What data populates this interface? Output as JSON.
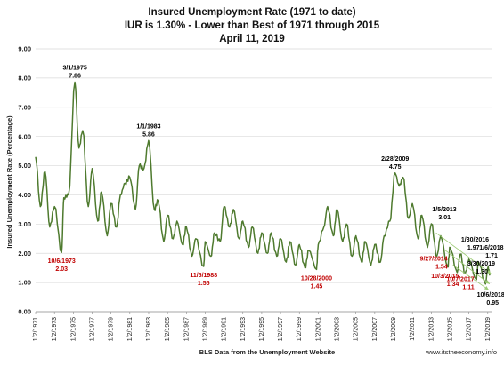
{
  "chart_data": {
    "type": "line",
    "title_lines": [
      "Insured Unemployment Rate (1971 to date)",
      "IUR is 1.30% - Lower than Best of 1971 through 2015",
      "April 11, 2019"
    ],
    "ylabel": "Insured Unemployment Rate (Percentage)",
    "xlabel": "BLS Data from the Unemployment Website",
    "source": "www.itstheeconomy.info",
    "ylim": [
      0,
      9
    ],
    "yticks": [
      "0.00",
      "1.00",
      "2.00",
      "3.00",
      "4.00",
      "5.00",
      "6.00",
      "7.00",
      "8.00",
      "9.00"
    ],
    "xlim": [
      1971.0,
      2019.4
    ],
    "xticks": [
      "1/2/1971",
      "1/2/1973",
      "1/2/1975",
      "1/2/1977",
      "1/2/1979",
      "1/2/1981",
      "1/2/1983",
      "1/2/1985",
      "1/2/1987",
      "1/2/1989",
      "1/2/1991",
      "1/2/1993",
      "1/2/1995",
      "1/2/1997",
      "1/2/1999",
      "1/2/2001",
      "1/2/2003",
      "1/2/2005",
      "1/2/2007",
      "1/2/2009",
      "1/2/2011",
      "1/2/2013",
      "1/2/2015",
      "1/2/2017",
      "1/2/2019"
    ],
    "grid": "horizontal",
    "line_color": "#4e7a2e",
    "series_trend": [
      [
        1971.0,
        5.3
      ],
      [
        1971.5,
        3.6
      ],
      [
        1972.0,
        4.8
      ],
      [
        1972.5,
        2.9
      ],
      [
        1973.0,
        3.6
      ],
      [
        1973.76,
        2.03
      ],
      [
        1974.0,
        3.9
      ],
      [
        1974.5,
        4.0
      ],
      [
        1975.17,
        7.86
      ],
      [
        1975.6,
        5.6
      ],
      [
        1976.0,
        6.2
      ],
      [
        1976.6,
        3.6
      ],
      [
        1977.0,
        4.9
      ],
      [
        1977.6,
        3.1
      ],
      [
        1978.0,
        4.1
      ],
      [
        1978.6,
        2.6
      ],
      [
        1979.0,
        3.7
      ],
      [
        1979.6,
        2.9
      ],
      [
        1980.0,
        4.0
      ],
      [
        1980.5,
        4.4
      ],
      [
        1981.0,
        4.6
      ],
      [
        1981.6,
        3.5
      ],
      [
        1982.0,
        5.0
      ],
      [
        1982.5,
        4.9
      ],
      [
        1983.0,
        5.86
      ],
      [
        1983.6,
        3.5
      ],
      [
        1984.0,
        3.8
      ],
      [
        1984.6,
        2.4
      ],
      [
        1985.0,
        3.3
      ],
      [
        1985.6,
        2.5
      ],
      [
        1986.0,
        3.1
      ],
      [
        1986.6,
        2.3
      ],
      [
        1987.0,
        2.9
      ],
      [
        1987.6,
        1.9
      ],
      [
        1988.0,
        2.5
      ],
      [
        1988.84,
        1.55
      ],
      [
        1989.0,
        2.4
      ],
      [
        1989.6,
        1.9
      ],
      [
        1990.0,
        2.7
      ],
      [
        1990.6,
        2.4
      ],
      [
        1991.0,
        3.6
      ],
      [
        1991.6,
        2.9
      ],
      [
        1992.0,
        3.5
      ],
      [
        1992.6,
        2.5
      ],
      [
        1993.0,
        3.1
      ],
      [
        1993.6,
        2.2
      ],
      [
        1994.0,
        2.9
      ],
      [
        1994.6,
        2.0
      ],
      [
        1995.0,
        2.7
      ],
      [
        1995.6,
        2.0
      ],
      [
        1996.0,
        2.7
      ],
      [
        1996.6,
        1.9
      ],
      [
        1997.0,
        2.5
      ],
      [
        1997.6,
        1.7
      ],
      [
        1998.0,
        2.4
      ],
      [
        1998.6,
        1.6
      ],
      [
        1999.0,
        2.3
      ],
      [
        1999.6,
        1.5
      ],
      [
        2000.0,
        2.1
      ],
      [
        2000.82,
        1.45
      ],
      [
        2001.0,
        2.3
      ],
      [
        2001.6,
        2.9
      ],
      [
        2002.0,
        3.6
      ],
      [
        2002.6,
        2.6
      ],
      [
        2003.0,
        3.5
      ],
      [
        2003.6,
        2.4
      ],
      [
        2004.0,
        3.0
      ],
      [
        2004.6,
        1.9
      ],
      [
        2005.0,
        2.6
      ],
      [
        2005.6,
        1.7
      ],
      [
        2006.0,
        2.4
      ],
      [
        2006.6,
        1.6
      ],
      [
        2007.0,
        2.3
      ],
      [
        2007.6,
        1.7
      ],
      [
        2008.0,
        2.6
      ],
      [
        2008.6,
        3.1
      ],
      [
        2009.16,
        4.75
      ],
      [
        2009.6,
        4.3
      ],
      [
        2010.0,
        4.6
      ],
      [
        2010.6,
        3.2
      ],
      [
        2011.0,
        3.7
      ],
      [
        2011.6,
        2.5
      ],
      [
        2012.0,
        3.3
      ],
      [
        2012.6,
        2.2
      ],
      [
        2013.01,
        3.01
      ],
      [
        2013.6,
        1.9
      ],
      [
        2014.0,
        2.6
      ],
      [
        2014.74,
        1.54
      ],
      [
        2015.0,
        2.2
      ],
      [
        2015.75,
        1.34
      ],
      [
        2016.08,
        1.97
      ],
      [
        2016.6,
        1.3
      ],
      [
        2017.0,
        1.8
      ],
      [
        2017.76,
        1.11
      ],
      [
        2018.01,
        1.71
      ],
      [
        2018.76,
        0.95
      ],
      [
        2019.0,
        1.5
      ],
      [
        2019.24,
        1.3
      ]
    ],
    "annotations": [
      {
        "date": "3/1/1975",
        "value": "7.86",
        "x": 1975.17,
        "y": 7.86,
        "color": "#000000",
        "pos": "above"
      },
      {
        "date": "10/6/1973",
        "value": "2.03",
        "x": 1973.76,
        "y": 2.03,
        "color": "#c00000",
        "pos": "below"
      },
      {
        "date": "1/1/1983",
        "value": "5.86",
        "x": 1983.0,
        "y": 5.86,
        "color": "#000000",
        "pos": "above"
      },
      {
        "date": "11/5/1988",
        "value": "1.55",
        "x": 1988.84,
        "y": 1.55,
        "color": "#c00000",
        "pos": "below"
      },
      {
        "date": "10/28/2000",
        "value": "1.45",
        "x": 2000.82,
        "y": 1.45,
        "color": "#c00000",
        "pos": "below"
      },
      {
        "date": "2/28/2009",
        "value": "4.75",
        "x": 2009.16,
        "y": 4.75,
        "color": "#000000",
        "pos": "above"
      },
      {
        "date": "1/5/2013",
        "value": "3.01",
        "x": 2013.01,
        "y": 3.01,
        "color": "#000000",
        "pos": "above-right"
      },
      {
        "date": "1/30/2016",
        "value": "1.97",
        "x": 2016.08,
        "y": 1.97,
        "color": "#000000",
        "pos": "above-right"
      },
      {
        "date": "1/6/2018",
        "value": "1.71",
        "x": 2018.01,
        "y": 1.71,
        "color": "#000000",
        "pos": "above-right"
      },
      {
        "date": "3/30/2019",
        "value": "1.30",
        "x": 2019.24,
        "y": 1.3,
        "color": "#000000",
        "pos": "right"
      },
      {
        "date": "9/27/2014",
        "value": "1.54",
        "x": 2014.74,
        "y": 1.54,
        "color": "#c00000",
        "pos": "left"
      },
      {
        "date": "10/3/2015",
        "value": "1.34",
        "x": 2015.75,
        "y": 1.34,
        "color": "#c00000",
        "pos": "left"
      },
      {
        "date": "10/7/2017",
        "value": "1.11",
        "x": 2017.76,
        "y": 1.11,
        "color": "#c00000",
        "pos": "left"
      },
      {
        "date": "10/6/2018",
        "value": "0.95",
        "x": 2018.76,
        "y": 0.95,
        "color": "#000000",
        "pos": "below"
      }
    ]
  }
}
